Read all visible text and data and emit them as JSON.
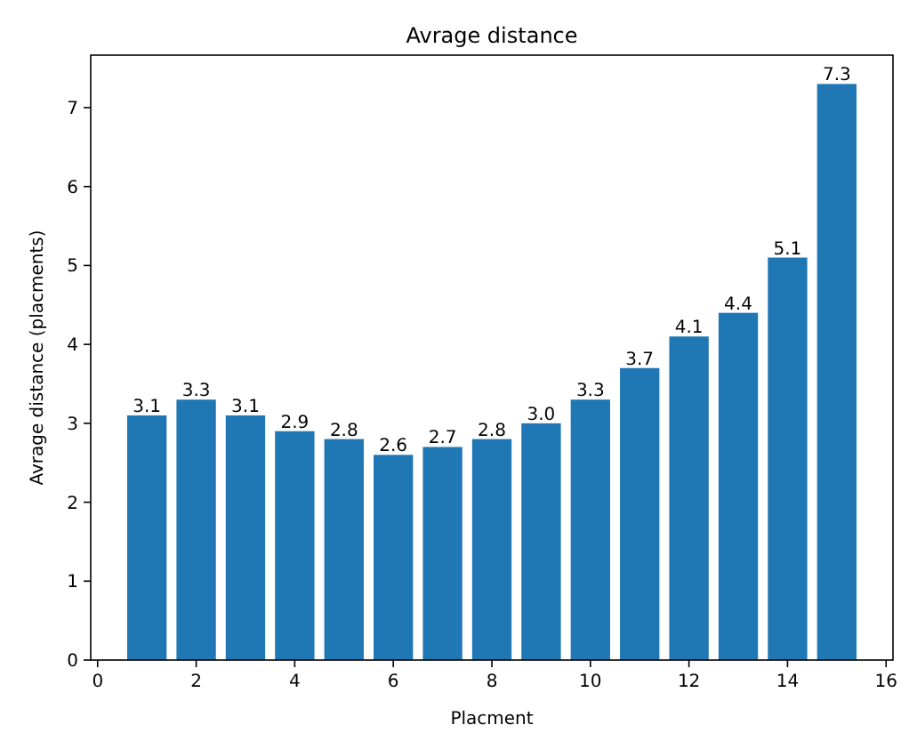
{
  "chart_data": {
    "type": "bar",
    "title": "Avrage distance",
    "xlabel": "Placment",
    "ylabel": "Avrage distance (placments)",
    "x": [
      1,
      2,
      3,
      4,
      5,
      6,
      7,
      8,
      9,
      10,
      11,
      12,
      13,
      14,
      15
    ],
    "values": [
      3.1,
      3.3,
      3.1,
      2.9,
      2.8,
      2.6,
      2.7,
      2.8,
      3.0,
      3.3,
      3.7,
      4.1,
      4.4,
      5.1,
      7.3
    ],
    "value_labels": [
      "3.1",
      "3.3",
      "3.1",
      "2.9",
      "2.8",
      "2.6",
      "2.7",
      "2.8",
      "3.0",
      "3.3",
      "3.7",
      "4.1",
      "4.4",
      "5.1",
      "7.3"
    ],
    "color": "#1f77b4",
    "xlim": [
      -0.14,
      16.14
    ],
    "xticks": [
      0,
      2,
      4,
      6,
      8,
      10,
      12,
      14,
      16
    ],
    "ylim": [
      0,
      7.665
    ],
    "yticks": [
      0,
      1,
      2,
      3,
      4,
      5,
      6,
      7
    ]
  }
}
